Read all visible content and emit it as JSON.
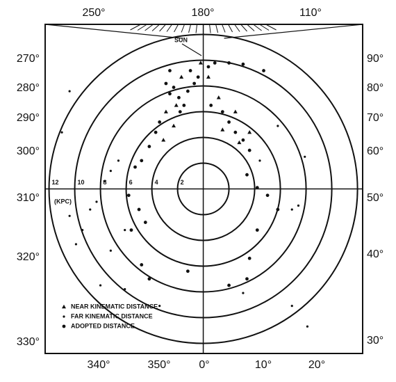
{
  "chart_data": {
    "type": "scatter",
    "xlim": [
      -12.3,
      12.4
    ],
    "ylim": [
      -12.8,
      12.8
    ],
    "rings": [
      2,
      4,
      6,
      8,
      10,
      12
    ],
    "unit_label": "(KPC)",
    "sun_label": "SUN",
    "top_labels": [
      "250°",
      "180°",
      "110°"
    ],
    "left_labels": [
      "270°",
      "280°",
      "290°",
      "300°",
      "310°",
      "320°",
      "330°"
    ],
    "right_labels": [
      "90°",
      "80°",
      "70°",
      "60°",
      "50°",
      "40°",
      "30°"
    ],
    "bottom_labels": [
      "340°",
      "350°",
      "0°",
      "10°",
      "20°"
    ],
    "series": [
      {
        "name": "NEAR KINEMATIC DISTANCE",
        "marker": "triangle",
        "color": "#111111",
        "x": [
          -2.1,
          -1.7,
          -0.2,
          1.2,
          1.5,
          2.8,
          -2.9,
          -2.3,
          -3.1,
          0.4,
          2.5,
          3.6
        ],
        "y": [
          6.5,
          8.7,
          9.8,
          7.1,
          4.6,
          3.6,
          6.0,
          4.9,
          3.8,
          8.7,
          6.0,
          4.4
        ]
      },
      {
        "name": "FAR KINEMATIC DISTANCE",
        "marker": "dot",
        "color": "#111111",
        "x": [
          -8.3,
          -8.8,
          -9.4,
          -10.4,
          -9.9,
          -11.0,
          -10.4,
          -7.7,
          -7.2,
          -6.6,
          -8.0,
          -6.1,
          -7.2,
          6.9,
          7.4,
          6.9,
          8.1,
          5.8,
          4.4,
          -6.1,
          -3.4,
          3.1,
          7.9
        ],
        "y": [
          -1.0,
          -1.6,
          -3.2,
          -2.1,
          -4.3,
          4.4,
          7.6,
          0.6,
          1.4,
          2.2,
          -7.5,
          -7.8,
          -4.8,
          -1.6,
          -1.3,
          -9.1,
          -10.7,
          4.9,
          2.2,
          -3.2,
          -9.1,
          -8.1,
          2.5
        ]
      },
      {
        "name": "ADOPTED DISTANCE",
        "marker": "circle",
        "color": "#111111",
        "x": [
          -2.9,
          -2.3,
          -2.6,
          -1.9,
          -1.5,
          -1.8,
          -1.2,
          -0.7,
          -0.4,
          -1.0,
          -2.6,
          0.4,
          0.9,
          2.0,
          3.1,
          4.7,
          0.6,
          1.5,
          2.0,
          2.5,
          3.1,
          3.6,
          3.4,
          4.2,
          5.0,
          5.8,
          -3.4,
          -3.7,
          -4.2,
          -4.8,
          -5.3,
          -5.8,
          -5.0,
          -4.5,
          -5.6,
          -4.8,
          -4.2,
          4.2,
          3.6,
          3.4,
          2.0,
          -1.2
        ],
        "y": [
          8.2,
          7.9,
          7.4,
          7.1,
          6.5,
          6.0,
          7.6,
          8.2,
          8.7,
          9.2,
          9.2,
          9.5,
          9.8,
          9.8,
          9.7,
          9.2,
          6.5,
          6.0,
          5.2,
          4.4,
          3.8,
          3.0,
          1.1,
          0.1,
          -0.5,
          -1.6,
          5.2,
          4.4,
          3.3,
          2.2,
          1.7,
          -0.5,
          -1.6,
          -2.6,
          -3.2,
          -5.9,
          -7.0,
          -3.2,
          -5.4,
          -7.0,
          -7.5,
          -6.4
        ]
      }
    ]
  }
}
